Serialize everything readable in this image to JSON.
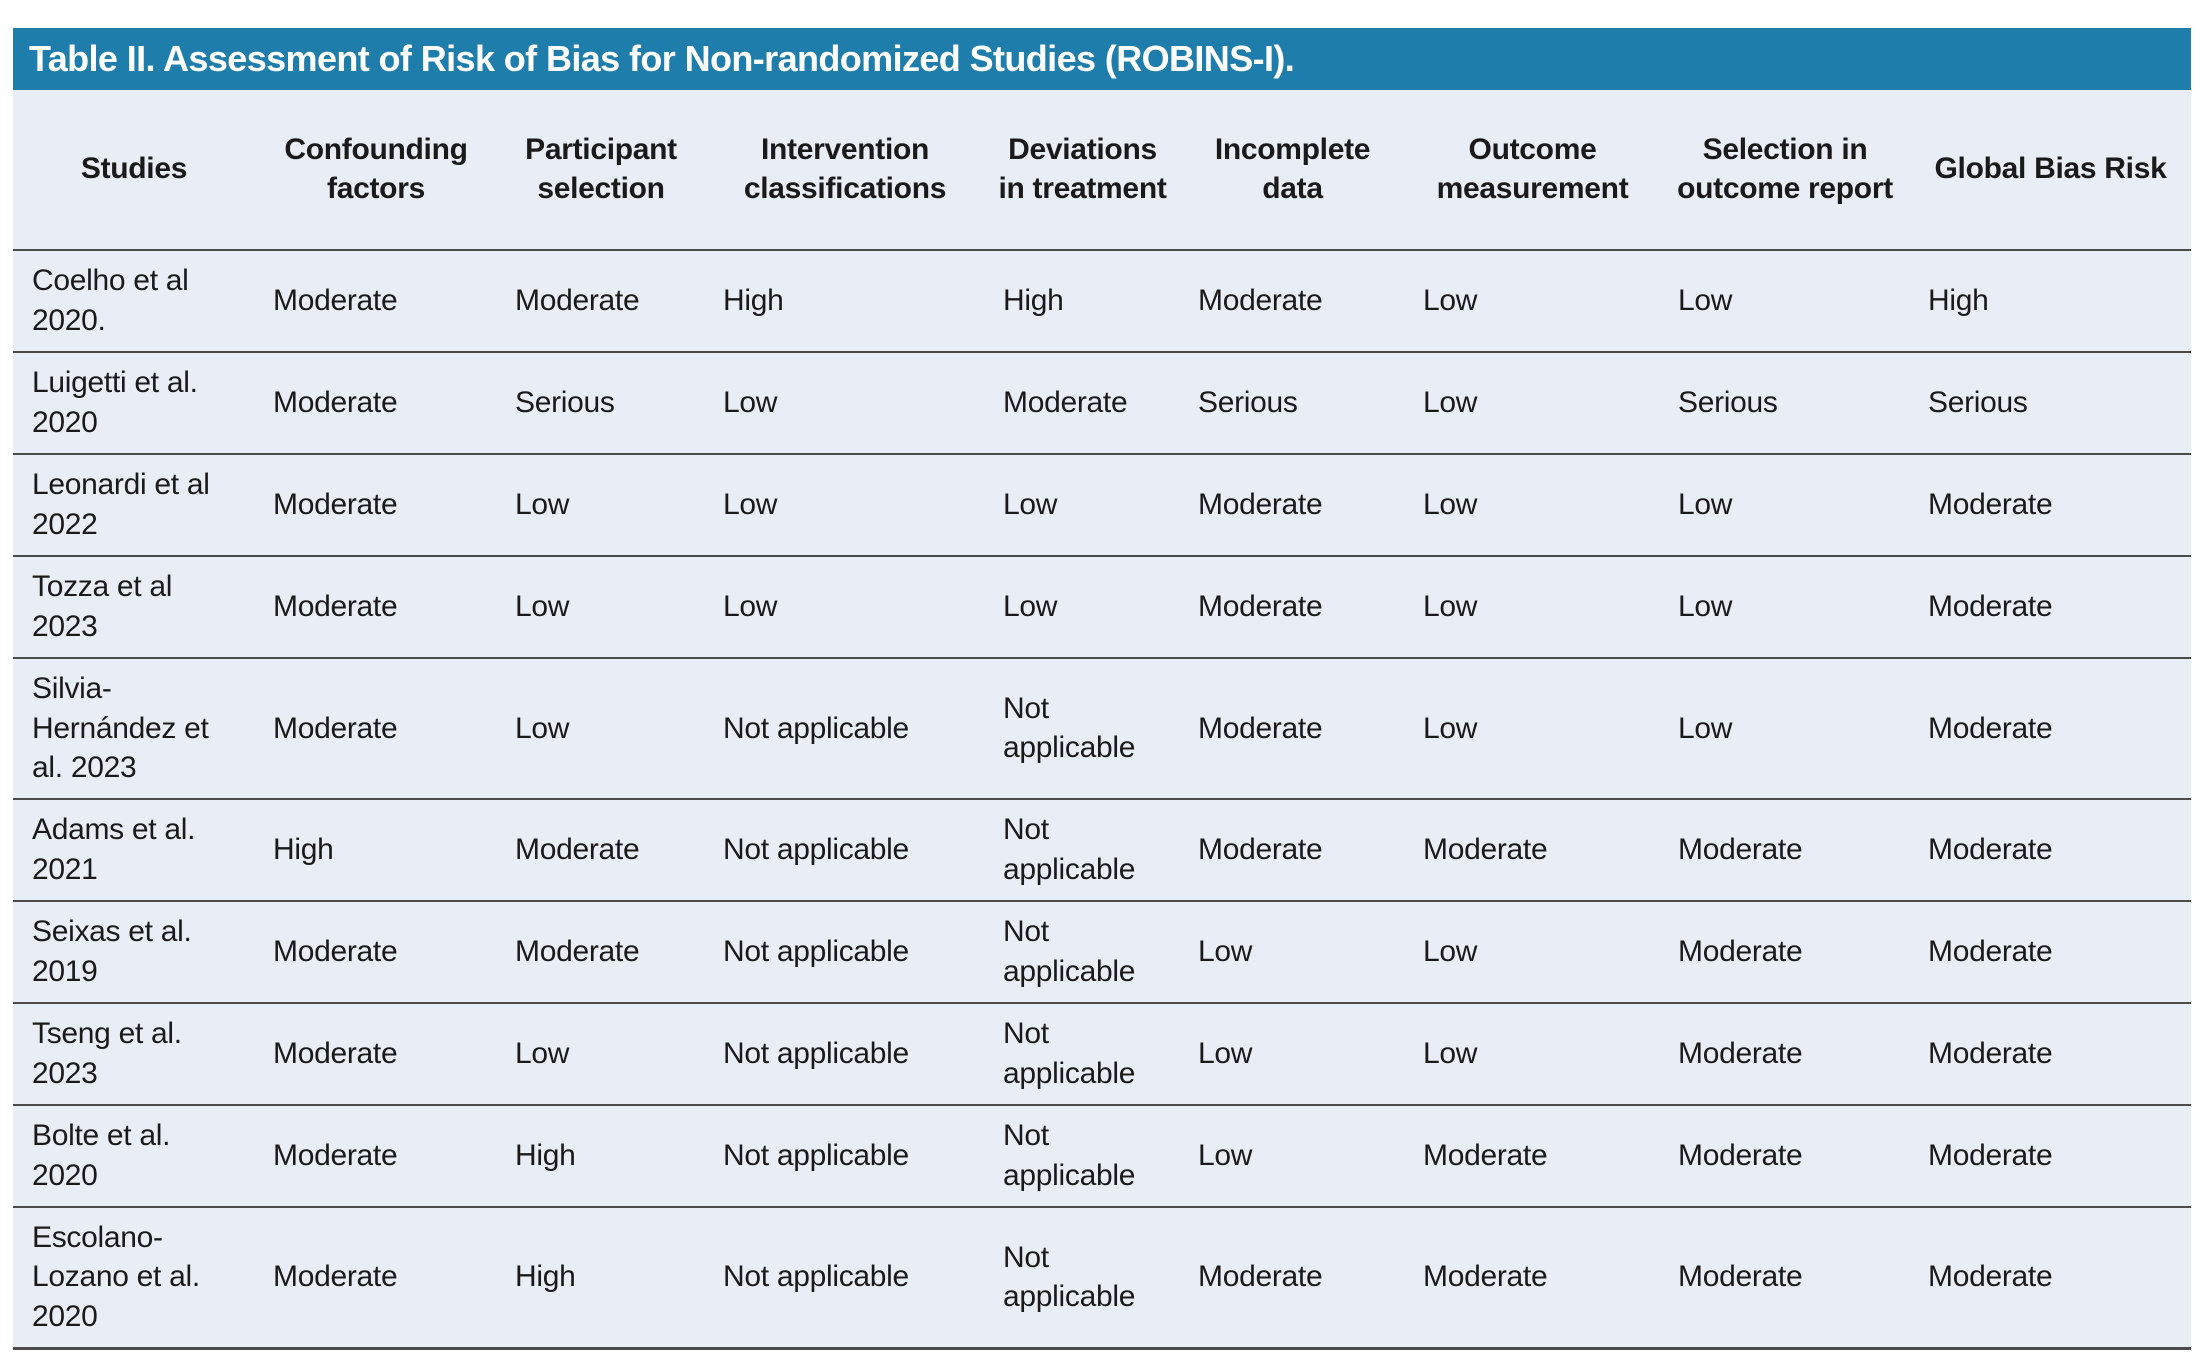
{
  "table": {
    "title": "Table II. Assessment of Risk of Bias for Non-randomized Studies (ROBINS-I).",
    "columns": [
      "Studies",
      "Confounding factors",
      "Participant selection",
      "Intervention classifications",
      "Deviations in treatment",
      "Incomplete data",
      "Outcome measurement",
      "Selection in outcome report",
      "Global Bias Risk"
    ],
    "rows": [
      {
        "study": "Coelho et al 2020.",
        "values": [
          "Moderate",
          "Moderate",
          "High",
          "High",
          "Moderate",
          "Low",
          "Low",
          "High"
        ]
      },
      {
        "study": "Luigetti et al. 2020",
        "values": [
          "Moderate",
          "Serious",
          "Low",
          "Moderate",
          "Serious",
          "Low",
          "Serious",
          "Serious"
        ]
      },
      {
        "study": "Leonardi et al 2022",
        "values": [
          "Moderate",
          "Low",
          "Low",
          "Low",
          "Moderate",
          "Low",
          "Low",
          "Moderate"
        ]
      },
      {
        "study": "Tozza et al 2023",
        "values": [
          "Moderate",
          "Low",
          "Low",
          "Low",
          "Moderate",
          "Low",
          "Low",
          "Moderate"
        ]
      },
      {
        "study": "Silvia-Hernández et al. 2023",
        "values": [
          "Moderate",
          "Low",
          "Not applicable",
          "Not applicable",
          "Moderate",
          "Low",
          "Low",
          "Moderate"
        ]
      },
      {
        "study": "Adams et al. 2021",
        "values": [
          "High",
          "Moderate",
          "Not applicable",
          "Not applicable",
          "Moderate",
          "Moderate",
          "Moderate",
          "Moderate"
        ]
      },
      {
        "study": "Seixas et al. 2019",
        "values": [
          "Moderate",
          "Moderate",
          "Not applicable",
          "Not applicable",
          "Low",
          "Low",
          "Moderate",
          "Moderate"
        ]
      },
      {
        "study": "Tseng et al. 2023",
        "values": [
          "Moderate",
          "Low",
          "Not applicable",
          "Not applicable",
          "Low",
          "Low",
          "Moderate",
          "Moderate"
        ]
      },
      {
        "study": "Bolte et al. 2020",
        "values": [
          "Moderate",
          "High",
          "Not applicable",
          "Not applicable",
          "Low",
          "Moderate",
          "Moderate",
          "Moderate"
        ]
      },
      {
        "study": "Escolano-Lozano et al. 2020",
        "values": [
          "Moderate",
          "High",
          "Not applicable",
          "Not applicable",
          "Moderate",
          "Moderate",
          "Moderate",
          "Moderate"
        ]
      }
    ],
    "colors": {
      "header_bar": "#1f7dab",
      "table_bg": "#e9edf6",
      "row_line": "#4b4b4b",
      "text": "#1a1a1a",
      "title_text": "#ffffff"
    }
  }
}
